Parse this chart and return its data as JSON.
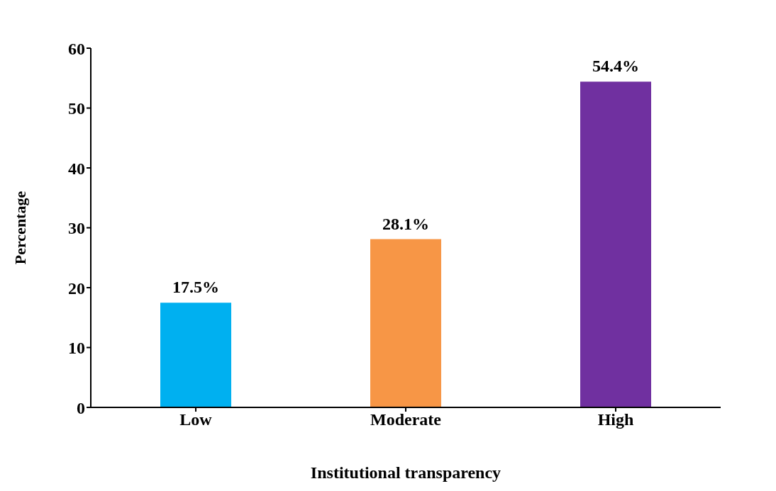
{
  "chart_data": {
    "type": "bar",
    "xlabel": "Institutional transparency",
    "ylabel": "Percentage",
    "categories": [
      "Low",
      "Moderate",
      "High"
    ],
    "values": [
      17.5,
      28.1,
      54.4
    ],
    "colors": [
      "#00b0f0",
      "#f79646",
      "#7030a0"
    ],
    "value_labels": [
      "17.5%",
      "28.1%",
      "54.4%"
    ],
    "ylim": [
      0,
      60
    ],
    "yticks": [
      0,
      10,
      20,
      30,
      40,
      50,
      60
    ]
  }
}
